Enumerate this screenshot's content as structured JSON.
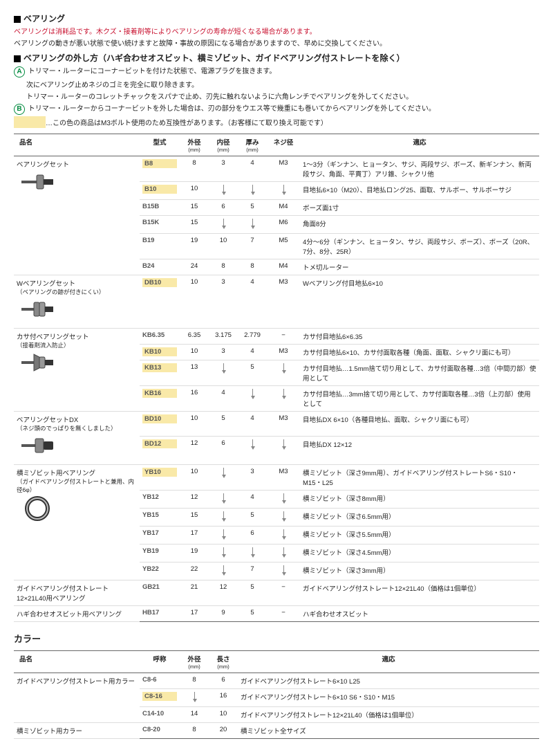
{
  "intro": {
    "title": "ベアリング",
    "red_line": "ベアリングは消耗品です。木クズ・接着剤等によりベアリングの寿命が短くなる場合があります。",
    "line2": "ベアリングの動きが悪い状態で使い続けますと故障・事故の原因になる場合がありますので、早めに交換してください。",
    "removal_title": "ベアリングの外し方（ハギ合わせオスビット、横ミゾビット、ガイドベアリング付ストレートを除く）",
    "step_a1": "トリマー・ルーターにコーナービットを付けた状態で、電源プラグを抜きます。",
    "step_a2": "次にベアリング止めネジのゴミを完全に取り除きます。",
    "step_a3": "トリマー・ルーターのコレットチャックをスパナで止め、刃先に触れないように六角レンチでベアリングを外してください。",
    "step_b": "トリマー・ルーターからコーナービットを外した場合は、刃の部分をウエス等で幾重にも巻いてからベアリングを外してください。",
    "note": "…この色の商品はM3ボルト使用のため互換性があります。（お客様にて取り換え可能です）"
  },
  "columns": {
    "name": "品名",
    "code": "型式",
    "od": "外径",
    "id": "内径",
    "th": "厚み",
    "screw": "ネジ径",
    "app": "適応",
    "unit_mm": "(mm)",
    "col_name2": "呼称",
    "len": "長さ"
  },
  "groups": [
    {
      "name": "ベアリングセット",
      "img": "bearing-shaft",
      "rows": [
        {
          "code": "B8",
          "hl": true,
          "od": "8",
          "id": "3",
          "th": "4",
          "screw": "M3",
          "app": "1〜3分（ギンナン、ヒョータン、サジ、両段サジ、ボーズ、新ギンナン、新両段サジ、角面、平貫丁）アリ錐、シャクリ他"
        },
        {
          "code": "B10",
          "hl": true,
          "od": "10",
          "id": "",
          "th": "",
          "screw": "",
          "app": "目地払6×10（M20）、目地払ロング25、面取、サルボー、サルボーサジ"
        },
        {
          "code": "B15B",
          "od": "15",
          "id": "6",
          "th": "5",
          "screw": "M4",
          "app": "ボーズ面1寸"
        },
        {
          "code": "B15K",
          "od": "15",
          "id": "",
          "th": "",
          "screw": "M6",
          "app": "角面8分"
        },
        {
          "code": "B19",
          "od": "19",
          "id": "10",
          "th": "7",
          "screw": "M5",
          "app": "4分〜6分（ギンナン、ヒョータン、サジ、両段サジ、ボーズ）、ボーズ（20R、7分、8分、25R）"
        },
        {
          "code": "B24",
          "od": "24",
          "id": "8",
          "th": "8",
          "screw": "M4",
          "app": "トメ切ルーター"
        }
      ]
    },
    {
      "name": "Wベアリングセット",
      "sub": "（ベアリングの跡が付きにくい）",
      "img": "bearing-double",
      "rows": [
        {
          "code": "DB10",
          "hl": true,
          "od": "10",
          "id": "3",
          "th": "4",
          "screw": "M3",
          "app": "Wベアリング付目地払6×10"
        }
      ]
    },
    {
      "name": "カサ付ベアリングセット",
      "sub": "（接着剤流入防止）",
      "img": "bearing-umbrella",
      "rows": [
        {
          "code": "KB6.35",
          "od": "6.35",
          "id": "3.175",
          "th": "2.779",
          "screw": "−",
          "app": "カサ付目地払6×6.35"
        },
        {
          "code": "KB10",
          "hl": true,
          "od": "10",
          "id": "3",
          "th": "4",
          "screw": "M3",
          "app": "カサ付目地払6×10、カサ付面取各種（角面、面取、シャクリ面にも可）"
        },
        {
          "code": "KB13",
          "hl": true,
          "od": "13",
          "id": "",
          "th": "5",
          "screw": "",
          "app": "カサ付目地払…1.5mm捨て切り用として、カサ付面取各種…3倍（中間刃部）使用として"
        },
        {
          "code": "KB16",
          "hl": true,
          "od": "16",
          "id": "4",
          "th": "",
          "screw": "",
          "app": "カサ付目地払…3mm捨て切り用として、カサ付面取各種…3倍（上刃部）使用として"
        }
      ]
    },
    {
      "name": "ベアリングセットDX",
      "sub": "（ネジ頭のでっぱりを無くしました）",
      "img": "bearing-dx",
      "rows": [
        {
          "code": "BD10",
          "hl": true,
          "od": "10",
          "id": "5",
          "th": "4",
          "screw": "M3",
          "app": "目地払DX 6×10（各種目地払、面取、シャクリ面にも可）"
        },
        {
          "code": "BD12",
          "hl": true,
          "od": "12",
          "id": "6",
          "th": "",
          "screw": "",
          "app": "目地払DX 12×12"
        }
      ]
    },
    {
      "name": "横ミゾビット用ベアリング",
      "sub": "（ガイドベアリング付ストレートと兼用、内径6φ）",
      "img": "ring",
      "rows": [
        {
          "code": "YB10",
          "hl": true,
          "od": "10",
          "id": "",
          "th": "3",
          "screw": "M3",
          "app": "横ミゾビット（深さ9mm用）、ガイドベアリング付ストレートS6・S10・M15・L25"
        },
        {
          "code": "YB12",
          "od": "12",
          "id": "",
          "th": "4",
          "screw": "",
          "app": "横ミゾビット（深さ8mm用）"
        },
        {
          "code": "YB15",
          "od": "15",
          "id": "",
          "th": "5",
          "screw": "",
          "app": "横ミゾビット（深さ6.5mm用）"
        },
        {
          "code": "YB17",
          "od": "17",
          "id": "",
          "th": "6",
          "screw": "",
          "app": "横ミゾビット（深さ5.5mm用）"
        },
        {
          "code": "YB19",
          "od": "19",
          "id": "",
          "th": "",
          "screw": "",
          "app": "横ミゾビット（深さ4.5mm用）"
        },
        {
          "code": "YB22",
          "od": "22",
          "id": "",
          "th": "7",
          "screw": "",
          "app": "横ミゾビット（深さ3mm用）"
        }
      ]
    },
    {
      "name": "ガイドベアリング付ストレート12×21L40用ベアリング",
      "rows": [
        {
          "code": "GB21",
          "od": "21",
          "id": "12",
          "th": "5",
          "screw": "−",
          "app": "ガイドベアリング付ストレート12×21L40（価格は1個単位）"
        }
      ]
    },
    {
      "name": "ハギ合わせオスビット用ベアリング",
      "rows": [
        {
          "code": "HB17",
          "od": "17",
          "id": "9",
          "th": "5",
          "screw": "−",
          "app": "ハギ合わせオスビット"
        }
      ]
    }
  ],
  "collar": {
    "title": "カラー",
    "groups": [
      {
        "name": "ガイドベアリング付ストレート用カラー",
        "rows": [
          {
            "code": "C8-6",
            "od": "8",
            "len": "6",
            "app": "ガイドベアリング付ストレート6×10 L25"
          },
          {
            "code": "C8-16",
            "hl": true,
            "od": "",
            "len": "16",
            "app": "ガイドベアリング付ストレート6×10 S6・S10・M15"
          },
          {
            "code": "C14-10",
            "od": "14",
            "len": "10",
            "app": "ガイドベアリング付ストレート12×21L40（価格は1個単位）"
          }
        ]
      },
      {
        "name": "横ミゾビット用カラー",
        "rows": [
          {
            "code": "C8-20",
            "od": "8",
            "len": "20",
            "app": "横ミゾビット全サイズ"
          }
        ]
      }
    ]
  },
  "svg_colors": {
    "metal": "#888",
    "dark": "#333",
    "shadow": "#ccc"
  }
}
